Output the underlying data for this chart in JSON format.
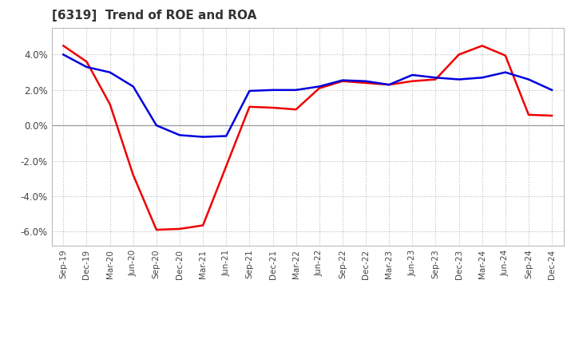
{
  "title": "[6319]  Trend of ROE and ROA",
  "ylim": [
    -6.8,
    5.5
  ],
  "yticks": [
    -6.0,
    -4.0,
    -2.0,
    0.0,
    2.0,
    4.0
  ],
  "background_color": "#ffffff",
  "plot_bg_color": "#ffffff",
  "grid_color": "#bbbbbb",
  "roe_color": "#ee0000",
  "roa_color": "#0000dd",
  "line_width": 1.8,
  "labels": [
    "Sep-19",
    "Dec-19",
    "Mar-20",
    "Jun-20",
    "Sep-20",
    "Dec-20",
    "Mar-21",
    "Jun-21",
    "Sep-21",
    "Dec-21",
    "Mar-22",
    "Jun-22",
    "Sep-22",
    "Dec-22",
    "Mar-23",
    "Jun-23",
    "Sep-23",
    "Dec-23",
    "Mar-24",
    "Jun-24",
    "Sep-24",
    "Dec-24"
  ],
  "roe": [
    4.5,
    3.6,
    1.2,
    -2.8,
    -5.9,
    -5.85,
    -5.65,
    -2.3,
    1.05,
    1.0,
    0.9,
    2.1,
    2.5,
    2.4,
    2.3,
    2.5,
    2.6,
    4.0,
    4.5,
    3.95,
    0.6,
    0.55
  ],
  "roa": [
    4.0,
    3.3,
    3.0,
    2.2,
    0.0,
    -0.55,
    -0.65,
    -0.6,
    1.95,
    2.0,
    2.0,
    2.2,
    2.55,
    2.5,
    2.3,
    2.85,
    2.7,
    2.6,
    2.7,
    3.0,
    2.6,
    2.0
  ]
}
